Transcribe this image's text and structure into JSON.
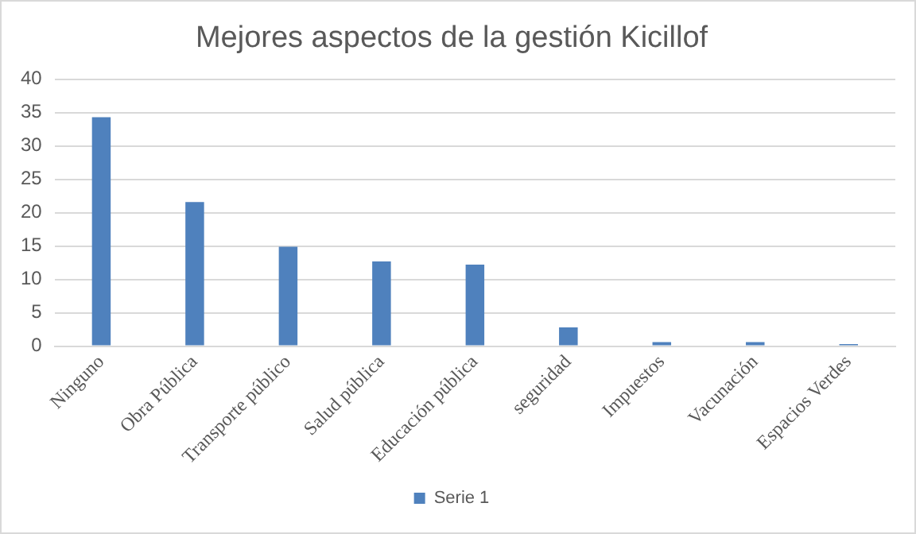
{
  "chart_data": {
    "type": "bar",
    "title": "Mejores aspectos de la gestión Kicillof",
    "categories": [
      "Ninguno",
      "Obra Pública",
      "Transporte público",
      "Salud pública",
      "Educación pública",
      "seguridad",
      "Impuestos",
      "Vacunación",
      "Espacios Verdes"
    ],
    "series": [
      {
        "name": "Serie 1",
        "color": "#4f81bd",
        "values": [
          34.3,
          21.6,
          14.9,
          12.7,
          12.2,
          2.8,
          0.6,
          0.6,
          0.3
        ]
      }
    ],
    "ylim": [
      0,
      40
    ],
    "yticks": [
      0,
      5,
      10,
      15,
      20,
      25,
      30,
      35,
      40
    ],
    "grid": "y",
    "legend": "bottom"
  }
}
